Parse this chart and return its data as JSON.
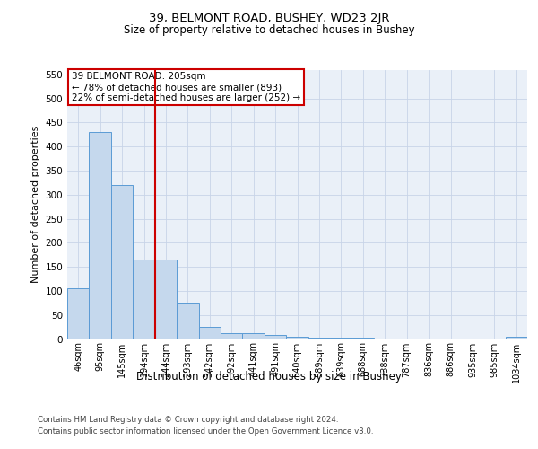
{
  "title": "39, BELMONT ROAD, BUSHEY, WD23 2JR",
  "subtitle": "Size of property relative to detached houses in Bushey",
  "xlabel": "Distribution of detached houses by size in Bushey",
  "ylabel": "Number of detached properties",
  "footer_line1": "Contains HM Land Registry data © Crown copyright and database right 2024.",
  "footer_line2": "Contains public sector information licensed under the Open Government Licence v3.0.",
  "bar_labels": [
    "46sqm",
    "95sqm",
    "145sqm",
    "194sqm",
    "244sqm",
    "293sqm",
    "342sqm",
    "392sqm",
    "441sqm",
    "491sqm",
    "540sqm",
    "589sqm",
    "639sqm",
    "688sqm",
    "738sqm",
    "787sqm",
    "836sqm",
    "886sqm",
    "935sqm",
    "985sqm",
    "1034sqm"
  ],
  "bar_values": [
    105,
    430,
    320,
    165,
    165,
    75,
    25,
    12,
    12,
    8,
    5,
    3,
    3,
    3,
    0,
    0,
    0,
    0,
    0,
    0,
    5
  ],
  "bar_color": "#c5d8ed",
  "bar_edge_color": "#5b9bd5",
  "grid_color": "#c8d4e8",
  "background_color": "#eaf0f8",
  "red_line_x": 3.5,
  "red_line_color": "#cc0000",
  "annotation_text": "39 BELMONT ROAD: 205sqm\n← 78% of detached houses are smaller (893)\n22% of semi-detached houses are larger (252) →",
  "annotation_box_color": "#cc0000",
  "ylim": [
    0,
    560
  ],
  "yticks": [
    0,
    50,
    100,
    150,
    200,
    250,
    300,
    350,
    400,
    450,
    500,
    550
  ],
  "title_fontsize": 9.5,
  "subtitle_fontsize": 8.5
}
